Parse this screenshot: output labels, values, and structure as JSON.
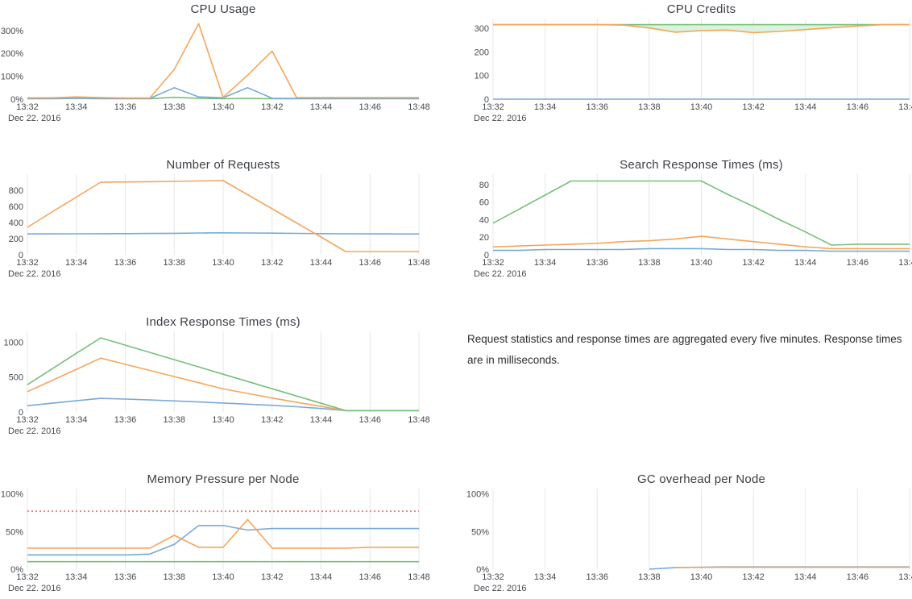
{
  "page": {
    "background": "#ffffff"
  },
  "palette": {
    "blue": "#7aa9d5",
    "orange": "#f5a55c",
    "green": "#76c07a",
    "red": "#ee8383",
    "grid": "#e7e7e7",
    "fill_green": "#d8eed6",
    "title_color": "#3c3f45",
    "tick_color": "#47494e"
  },
  "x_axis": {
    "tick_labels": [
      "13:32",
      "13:34",
      "13:36",
      "13:38",
      "13:40",
      "13:42",
      "13:44",
      "13:46",
      "13:48"
    ],
    "date_label": "Dec 22. 2016"
  },
  "note": {
    "text": "Request statistics and response times are aggregated every five minutes. Response times are in milliseconds."
  },
  "chart_data": [
    {
      "id": "cpu-usage",
      "type": "line",
      "title": "CPU Usage",
      "ylim": [
        0,
        345
      ],
      "grid": false,
      "yticks": [
        {
          "v": 0,
          "label": "0%"
        },
        {
          "v": 100,
          "label": "100%"
        },
        {
          "v": 200,
          "label": "200%"
        },
        {
          "v": 300,
          "label": "300%"
        }
      ],
      "series": [
        {
          "name": "green",
          "color_key": "green",
          "values": [
            2,
            2,
            3,
            2,
            2,
            2,
            8,
            4,
            2,
            3,
            2,
            2,
            2,
            2,
            2,
            2,
            2
          ]
        },
        {
          "name": "blue",
          "color_key": "blue",
          "values": [
            3,
            3,
            4,
            3,
            3,
            3,
            50,
            10,
            6,
            50,
            4,
            3,
            3,
            3,
            3,
            3,
            3
          ]
        },
        {
          "name": "orange",
          "color_key": "orange",
          "values": [
            6,
            6,
            10,
            7,
            5,
            5,
            130,
            330,
            8,
            105,
            210,
            7,
            7,
            7,
            7,
            7,
            7
          ]
        }
      ]
    },
    {
      "id": "cpu-credits",
      "type": "line",
      "title": "CPU Credits",
      "ylim": [
        0,
        335
      ],
      "grid": true,
      "fill_between": [
        0,
        1
      ],
      "yticks": [
        {
          "v": 0,
          "label": "0"
        },
        {
          "v": 100,
          "label": "100"
        },
        {
          "v": 200,
          "label": "200"
        },
        {
          "v": 300,
          "label": "300"
        }
      ],
      "series": [
        {
          "name": "green",
          "color_key": "green",
          "values": [
            316,
            316,
            316,
            316,
            316,
            316,
            316,
            316,
            316,
            316,
            316,
            316,
            316,
            316,
            316,
            316,
            316
          ]
        },
        {
          "name": "orange",
          "color_key": "orange",
          "values": [
            316,
            316,
            316,
            316,
            316,
            314,
            302,
            284,
            291,
            293,
            282,
            287,
            295,
            303,
            310,
            316,
            316
          ]
        },
        {
          "name": "blue",
          "color_key": "blue",
          "values": [
            0,
            0,
            0,
            0,
            0,
            0,
            0,
            0,
            0,
            0,
            0,
            0,
            0,
            0,
            0,
            0,
            0
          ]
        }
      ]
    },
    {
      "id": "number-of-requests",
      "type": "line",
      "title": "Number of Requests",
      "ylim": [
        0,
        980
      ],
      "grid": true,
      "yticks": [
        {
          "v": 0,
          "label": "0"
        },
        {
          "v": 200,
          "label": "200"
        },
        {
          "v": 400,
          "label": "400"
        },
        {
          "v": 600,
          "label": "600"
        },
        {
          "v": 800,
          "label": "800"
        }
      ],
      "series": [
        {
          "name": "blue",
          "color_key": "blue",
          "values": [
            258,
            259,
            260,
            261,
            262,
            264,
            266,
            270,
            272,
            270,
            268,
            265,
            262,
            260,
            259,
            258,
            258
          ]
        },
        {
          "name": "orange",
          "color_key": "orange",
          "values": [
            340,
            530,
            715,
            900,
            903,
            906,
            910,
            915,
            920,
            745,
            570,
            395,
            220,
            40,
            40,
            40,
            40
          ]
        }
      ]
    },
    {
      "id": "search-response-times",
      "type": "line",
      "title": "Search Response Times (ms)",
      "ylim": [
        0,
        90
      ],
      "grid": true,
      "yticks": [
        {
          "v": 0,
          "label": "0"
        },
        {
          "v": 20,
          "label": "20"
        },
        {
          "v": 40,
          "label": "40"
        },
        {
          "v": 60,
          "label": "60"
        },
        {
          "v": 80,
          "label": "80"
        }
      ],
      "series": [
        {
          "name": "blue",
          "color_key": "blue",
          "values": [
            5,
            5,
            6,
            6,
            6,
            6,
            7,
            7,
            7,
            6,
            6,
            5,
            5,
            4,
            4,
            4,
            4
          ]
        },
        {
          "name": "orange",
          "color_key": "orange",
          "values": [
            9,
            10,
            11,
            12,
            13,
            15,
            16,
            18,
            21,
            18,
            15,
            12,
            9,
            7,
            7,
            7,
            7
          ]
        },
        {
          "name": "green",
          "color_key": "green",
          "values": [
            36,
            52,
            68,
            84,
            84,
            84,
            84,
            84,
            84,
            69,
            55,
            40,
            26,
            11,
            12,
            12,
            12
          ]
        }
      ]
    },
    {
      "id": "index-response-times",
      "type": "line",
      "title": "Index Response Times (ms)",
      "ylim": [
        0,
        1130
      ],
      "grid": true,
      "yticks": [
        {
          "v": 0,
          "label": "0"
        },
        {
          "v": 500,
          "label": "500"
        },
        {
          "v": 1000,
          "label": "1000"
        }
      ],
      "series": [
        {
          "name": "blue",
          "color_key": "blue",
          "values": [
            90,
            125,
            160,
            195,
            185,
            172,
            158,
            143,
            128,
            112,
            95,
            75,
            50,
            20,
            20,
            20,
            20
          ]
        },
        {
          "name": "orange",
          "color_key": "orange",
          "values": [
            290,
            450,
            610,
            770,
            682,
            594,
            506,
            418,
            330,
            265,
            200,
            140,
            80,
            20,
            20,
            20,
            20
          ]
        },
        {
          "name": "green",
          "color_key": "green",
          "values": [
            390,
            615,
            840,
            1060,
            956,
            852,
            748,
            644,
            540,
            436,
            332,
            228,
            124,
            20,
            20,
            20,
            20
          ]
        }
      ]
    },
    {
      "id": "memory-pressure-per-node",
      "type": "line",
      "title": "Memory Pressure per Node",
      "ylim": [
        0,
        105
      ],
      "grid": true,
      "yticks": [
        {
          "v": 0,
          "label": "0%"
        },
        {
          "v": 50,
          "label": "50%"
        },
        {
          "v": 100,
          "label": "100%"
        }
      ],
      "series": [
        {
          "name": "green",
          "color_key": "green",
          "values": [
            10,
            10,
            10,
            10,
            10,
            10,
            10,
            10,
            10,
            10,
            10,
            10,
            10,
            10,
            10,
            10,
            10
          ]
        },
        {
          "name": "blue",
          "color_key": "blue",
          "values": [
            19,
            19,
            19,
            19,
            19,
            20,
            33,
            58,
            58,
            52,
            54,
            54,
            54,
            54,
            54,
            54,
            54
          ]
        },
        {
          "name": "orange",
          "color_key": "orange",
          "values": [
            28,
            28,
            28,
            28,
            28,
            28,
            45,
            29,
            29,
            66,
            28,
            28,
            28,
            28,
            29,
            29,
            29
          ]
        },
        {
          "name": "threshold",
          "color_key": "red",
          "dash": true,
          "values": [
            77,
            77,
            77,
            77,
            77,
            77,
            77,
            77,
            77,
            77,
            77,
            77,
            77,
            77,
            77,
            77,
            77
          ]
        }
      ]
    },
    {
      "id": "gc-overhead-per-node",
      "type": "line",
      "title": "GC overhead per Node",
      "ylim": [
        0,
        105
      ],
      "grid": true,
      "yticks": [
        {
          "v": 0,
          "label": "0%"
        },
        {
          "v": 50,
          "label": "50%"
        },
        {
          "v": 100,
          "label": "100%"
        }
      ],
      "series": [
        {
          "name": "blue",
          "color_key": "blue",
          "values": [
            null,
            null,
            null,
            null,
            null,
            null,
            0,
            2,
            2.7,
            3,
            3,
            3,
            3,
            3,
            3,
            3,
            3
          ]
        },
        {
          "name": "orange",
          "color_key": "orange",
          "values": [
            null,
            null,
            null,
            null,
            null,
            null,
            null,
            2.2,
            2.4,
            2.5,
            2.5,
            2.5,
            2.5,
            2.5,
            2.5,
            2.5,
            2.5
          ]
        }
      ]
    }
  ]
}
